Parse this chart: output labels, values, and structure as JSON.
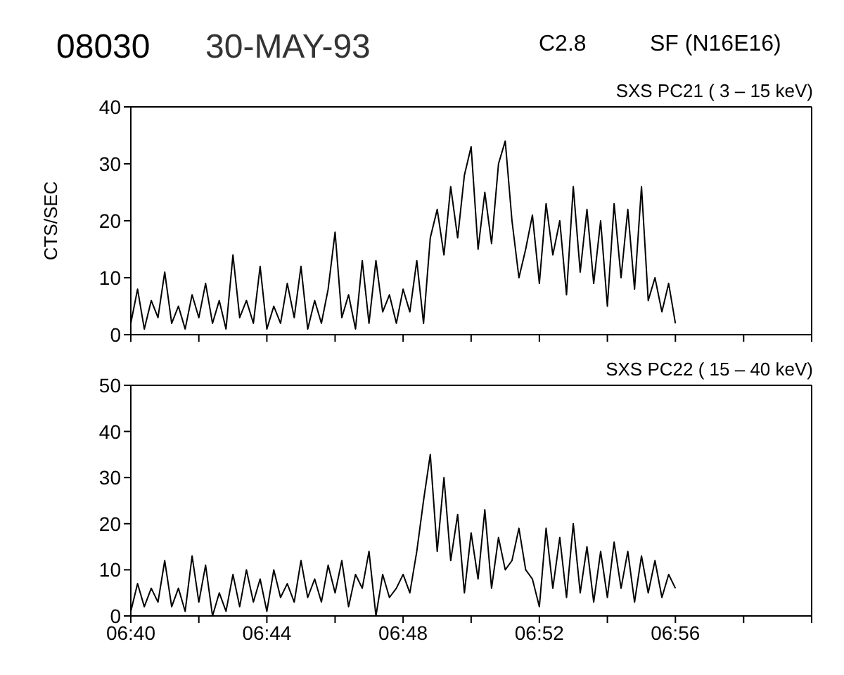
{
  "chart_data": [
    {
      "type": "line",
      "title": "SXS PC21  (  3 – 15 keV)",
      "annotations": [
        "08030",
        "30-MAY-93",
        "C2.8",
        "SF (N16E16)"
      ],
      "ylabel": "CTS/SEC",
      "x": [
        6.6667,
        6.67,
        6.6733,
        6.6767,
        6.68,
        6.6833,
        6.6867,
        6.69,
        6.6933,
        6.6967,
        6.7,
        6.7033,
        6.7067,
        6.71,
        6.7133,
        6.7167,
        6.72,
        6.7233,
        6.7267,
        6.73,
        6.7333,
        6.7367,
        6.74,
        6.7433,
        6.7467,
        6.75,
        6.7533,
        6.7567,
        6.76,
        6.7633,
        6.7667,
        6.77,
        6.7733,
        6.7767,
        6.78,
        6.7833,
        6.7867,
        6.79,
        6.7933,
        6.7967,
        6.8,
        6.8033,
        6.8067,
        6.81,
        6.8133,
        6.8167,
        6.82,
        6.8233,
        6.8267,
        6.83,
        6.8333,
        6.8367,
        6.84,
        6.8433,
        6.8467,
        6.85,
        6.8533,
        6.8567,
        6.86,
        6.8633,
        6.8667,
        6.87,
        6.8733,
        6.8767,
        6.88,
        6.8833,
        6.8867,
        6.89,
        6.8933,
        6.8967,
        6.9,
        6.9033,
        6.9067,
        6.91,
        6.9133,
        6.9167,
        6.92,
        6.9233,
        6.9267,
        6.93,
        6.9333
      ],
      "series": [
        {
          "color": "#000000",
          "values": [
            2,
            8,
            1,
            6,
            3,
            11,
            2,
            5,
            1,
            7,
            3,
            9,
            2,
            6,
            1,
            14,
            3,
            6,
            2,
            12,
            1,
            5,
            2,
            9,
            3,
            12,
            1,
            6,
            2,
            8,
            18,
            3,
            7,
            1,
            13,
            2,
            13,
            4,
            7,
            2,
            8,
            4,
            13,
            2,
            17,
            22,
            14,
            26,
            17,
            28,
            33,
            15,
            25,
            16,
            30,
            34,
            20,
            10,
            15,
            21,
            9,
            23,
            14,
            20,
            7,
            26,
            11,
            22,
            9,
            20,
            5,
            23,
            10,
            22,
            8,
            26,
            6,
            10,
            4,
            9,
            2
          ]
        }
      ],
      "xlim": [
        6.6667,
        7.0
      ],
      "xticks": [
        {
          "value": 6.6667,
          "label": null
        },
        {
          "value": 6.7,
          "label": null
        },
        {
          "value": 6.7333,
          "label": null
        },
        {
          "value": 6.7667,
          "label": null
        },
        {
          "value": 6.8,
          "label": null
        },
        {
          "value": 6.8333,
          "label": null
        },
        {
          "value": 6.8667,
          "label": null
        },
        {
          "value": 6.9,
          "label": null
        },
        {
          "value": 6.9333,
          "label": null
        },
        {
          "value": 6.9667,
          "label": null
        },
        {
          "value": 7.0,
          "label": null
        }
      ],
      "ylim": [
        0,
        40
      ],
      "yticks": [
        0,
        10,
        20,
        30,
        40
      ],
      "tick_labels": "y",
      "grid": false,
      "legend": false,
      "marker": "none",
      "line_style": "solid"
    },
    {
      "type": "line",
      "title": "SXS PC22  ( 15 – 40 keV)",
      "x": [
        6.6667,
        6.67,
        6.6733,
        6.6767,
        6.68,
        6.6833,
        6.6867,
        6.69,
        6.6933,
        6.6967,
        6.7,
        6.7033,
        6.7067,
        6.71,
        6.7133,
        6.7167,
        6.72,
        6.7233,
        6.7267,
        6.73,
        6.7333,
        6.7367,
        6.74,
        6.7433,
        6.7467,
        6.75,
        6.7533,
        6.7567,
        6.76,
        6.7633,
        6.7667,
        6.77,
        6.7733,
        6.7767,
        6.78,
        6.7833,
        6.7867,
        6.79,
        6.7933,
        6.7967,
        6.8,
        6.8033,
        6.8067,
        6.81,
        6.8133,
        6.8167,
        6.82,
        6.8233,
        6.8267,
        6.83,
        6.8333,
        6.8367,
        6.84,
        6.8433,
        6.8467,
        6.85,
        6.8533,
        6.8567,
        6.86,
        6.8633,
        6.8667,
        6.87,
        6.8733,
        6.8767,
        6.88,
        6.8833,
        6.8867,
        6.89,
        6.8933,
        6.8967,
        6.9,
        6.9033,
        6.9067,
        6.91,
        6.9133,
        6.9167,
        6.92,
        6.9233,
        6.9267,
        6.93,
        6.9333
      ],
      "series": [
        {
          "color": "#000000",
          "values": [
            1,
            7,
            2,
            6,
            3,
            12,
            2,
            6,
            1,
            13,
            3,
            11,
            0,
            5,
            1,
            9,
            2,
            10,
            3,
            8,
            1,
            10,
            4,
            7,
            3,
            12,
            4,
            8,
            3,
            11,
            5,
            12,
            2,
            9,
            6,
            14,
            0,
            9,
            4,
            6,
            9,
            5,
            14,
            25,
            35,
            14,
            30,
            12,
            22,
            5,
            18,
            8,
            23,
            6,
            17,
            10,
            12,
            19,
            10,
            8,
            2,
            19,
            6,
            17,
            4,
            20,
            5,
            15,
            3,
            14,
            4,
            16,
            6,
            14,
            3,
            13,
            5,
            12,
            4,
            9,
            6
          ]
        }
      ],
      "xlim": [
        6.6667,
        7.0
      ],
      "xticks": [
        {
          "value": 6.6667,
          "label": "06:40"
        },
        {
          "value": 6.7,
          "label": null
        },
        {
          "value": 6.7333,
          "label": "06:44"
        },
        {
          "value": 6.7667,
          "label": null
        },
        {
          "value": 6.8,
          "label": "06:48"
        },
        {
          "value": 6.8333,
          "label": null
        },
        {
          "value": 6.8667,
          "label": "06:52"
        },
        {
          "value": 6.9,
          "label": null
        },
        {
          "value": 6.9333,
          "label": "06:56"
        },
        {
          "value": 6.9667,
          "label": null
        },
        {
          "value": 7.0,
          "label": null
        }
      ],
      "ylim": [
        0,
        50
      ],
      "yticks": [
        0,
        10,
        20,
        30,
        40,
        50
      ],
      "grid": false,
      "legend": false,
      "marker": "none",
      "line_style": "solid"
    }
  ]
}
